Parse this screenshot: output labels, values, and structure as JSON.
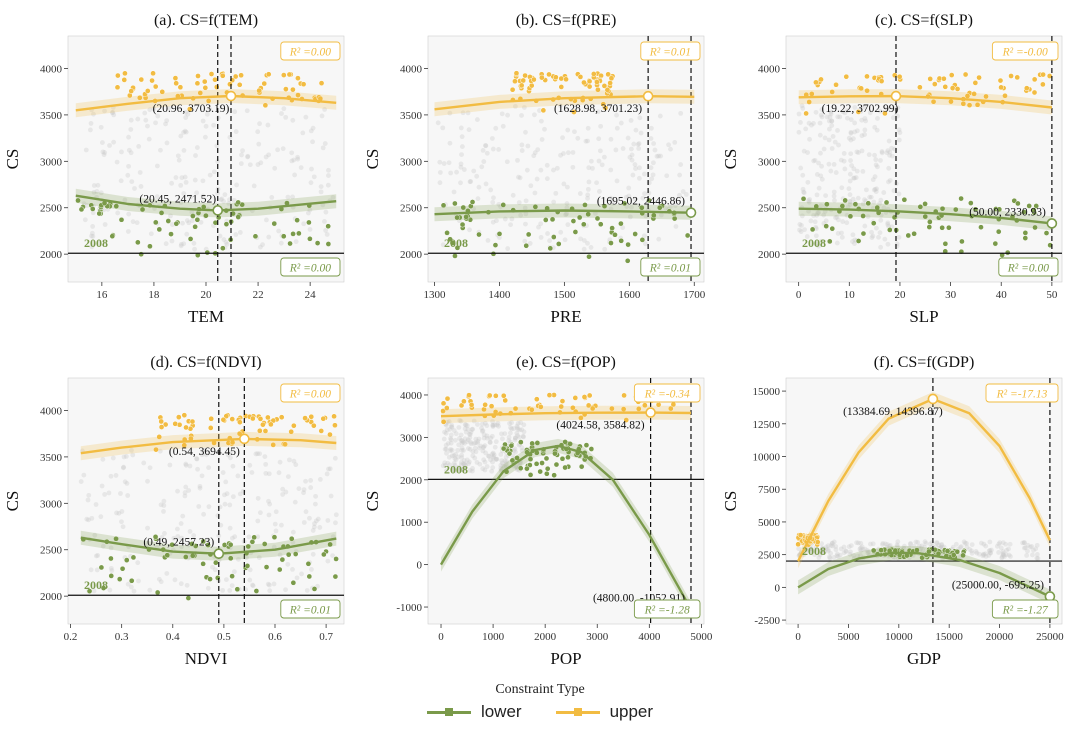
{
  "colors": {
    "lower": "#7a9a4a",
    "upper": "#f2bc42",
    "cloud": "#c9c9c9",
    "panel_bg": "#f7f7f7"
  },
  "legend": {
    "title": "Constraint Type",
    "items": [
      {
        "key": "lower",
        "label": "lower"
      },
      {
        "key": "upper",
        "label": "upper"
      }
    ]
  },
  "year_label": "2008",
  "chart_data": [
    {
      "type": "scatter",
      "title": "(a). CS=f(TEM)",
      "xlabel": "TEM",
      "ylabel": "CS",
      "xlim": [
        14.7,
        25.3
      ],
      "ylim": [
        1700,
        4350
      ],
      "xticks": [
        16,
        18,
        20,
        22,
        24
      ],
      "yticks": [
        2000,
        2500,
        3000,
        3500,
        4000
      ],
      "hline": 2010,
      "vlines": [
        20.45,
        20.96
      ],
      "cloud": {
        "x": [
          15.3,
          24.9
        ],
        "y": [
          2050,
          3600
        ]
      },
      "upper": {
        "curve": [
          [
            15,
            3550
          ],
          [
            17,
            3620
          ],
          [
            19,
            3680
          ],
          [
            20.96,
            3703.19
          ],
          [
            23,
            3680
          ],
          [
            25,
            3630
          ]
        ],
        "points_y": [
          3500,
          3950
        ],
        "points_x": [
          16.5,
          24.5
        ],
        "extreme": {
          "x": 20.96,
          "y": 3703.19,
          "label": "(20.96, 3703.19)"
        },
        "r2": "R² =0.00"
      },
      "lower": {
        "curve": [
          [
            15,
            2630
          ],
          [
            17,
            2540
          ],
          [
            19,
            2490
          ],
          [
            20.45,
            2471.52
          ],
          [
            22,
            2490
          ],
          [
            25,
            2570
          ]
        ],
        "points_y": [
          1900,
          2580
        ],
        "points_x": [
          15,
          25
        ],
        "extreme": {
          "x": 20.45,
          "y": 2471.52,
          "label": "(20.45, 2471.52)"
        },
        "r2": "R² =0.00"
      }
    },
    {
      "type": "scatter",
      "title": "(b). CS=f(PRE)",
      "xlabel": "PRE",
      "ylabel": "CS",
      "xlim": [
        1290,
        1715
      ],
      "ylim": [
        1700,
        4350
      ],
      "xticks": [
        1300,
        1400,
        1500,
        1600,
        1700
      ],
      "yticks": [
        2000,
        2500,
        3000,
        3500,
        4000
      ],
      "hline": 2010,
      "vlines": [
        1628.98,
        1695.02
      ],
      "cloud": {
        "x": [
          1305,
          1690
        ],
        "y": [
          2050,
          3600
        ]
      },
      "upper": {
        "curve": [
          [
            1300,
            3560
          ],
          [
            1400,
            3640
          ],
          [
            1500,
            3680
          ],
          [
            1628.98,
            3701.23
          ],
          [
            1700,
            3695
          ]
        ],
        "points_y": [
          3500,
          3950
        ],
        "points_x": [
          1420,
          1580
        ],
        "extreme": {
          "x": 1628.98,
          "y": 3701.23,
          "label": "(1628.98, 3701.23)"
        },
        "r2": "R² =0.01"
      },
      "lower": {
        "curve": [
          [
            1300,
            2430
          ],
          [
            1400,
            2460
          ],
          [
            1500,
            2470
          ],
          [
            1600,
            2460
          ],
          [
            1695.02,
            2446.86
          ]
        ],
        "points_y": [
          1900,
          2580
        ],
        "points_x": [
          1310,
          1690
        ],
        "extreme": {
          "x": 1695.02,
          "y": 2446.86,
          "label": "(1695.02, 2446.86)"
        },
        "r2": "R² =0.01"
      }
    },
    {
      "type": "scatter",
      "title": "(c). CS=f(SLP)",
      "xlabel": "SLP",
      "ylabel": "CS",
      "xlim": [
        -2.5,
        52
      ],
      "ylim": [
        1700,
        4350
      ],
      "xticks": [
        0,
        10,
        20,
        30,
        40,
        50
      ],
      "yticks": [
        2000,
        2500,
        3000,
        3500,
        4000
      ],
      "hline": 2010,
      "vlines": [
        19.22,
        50
      ],
      "cloud": {
        "x": [
          0,
          20
        ],
        "y": [
          2050,
          3600
        ]
      },
      "upper": {
        "curve": [
          [
            0,
            3690
          ],
          [
            10,
            3700
          ],
          [
            19.22,
            3702.99
          ],
          [
            30,
            3680
          ],
          [
            40,
            3640
          ],
          [
            50,
            3580
          ]
        ],
        "points_y": [
          3500,
          3950
        ],
        "points_x": [
          0,
          50
        ],
        "extreme": {
          "x": 19.22,
          "y": 3702.99,
          "label": "(19.22, 3702.99)"
        },
        "r2": "R² =-0.00"
      },
      "lower": {
        "curve": [
          [
            0,
            2490
          ],
          [
            10,
            2480
          ],
          [
            20,
            2460
          ],
          [
            30,
            2430
          ],
          [
            40,
            2390
          ],
          [
            50,
            2330.93
          ]
        ],
        "points_y": [
          1900,
          2600
        ],
        "points_x": [
          0,
          50
        ],
        "extreme": {
          "x": 50,
          "y": 2330.93,
          "label": "(50.00, 2330.93)"
        },
        "r2": "R² =0.00"
      }
    },
    {
      "type": "scatter",
      "title": "(d). CS=f(NDVI)",
      "xlabel": "NDVI",
      "ylabel": "CS",
      "xlim": [
        0.195,
        0.735
      ],
      "ylim": [
        1700,
        4350
      ],
      "xticks": [
        0.2,
        0.3,
        0.4,
        0.5,
        0.6,
        0.7
      ],
      "yticks": [
        2000,
        2500,
        3000,
        3500,
        4000
      ],
      "hline": 2010,
      "vlines": [
        0.49,
        0.54
      ],
      "cloud": {
        "x": [
          0.22,
          0.72
        ],
        "y": [
          2050,
          3600
        ]
      },
      "upper": {
        "curve": [
          [
            0.22,
            3540
          ],
          [
            0.3,
            3600
          ],
          [
            0.4,
            3660
          ],
          [
            0.54,
            3694.45
          ],
          [
            0.65,
            3680
          ],
          [
            0.72,
            3650
          ]
        ],
        "points_y": [
          3550,
          3950
        ],
        "points_x": [
          0.36,
          0.72
        ],
        "extreme": {
          "x": 0.54,
          "y": 3694.45,
          "label": "(0.54, 3694.45)"
        },
        "r2": "R² =0.00"
      },
      "lower": {
        "curve": [
          [
            0.22,
            2630
          ],
          [
            0.3,
            2560
          ],
          [
            0.4,
            2480
          ],
          [
            0.49,
            2457.23
          ],
          [
            0.6,
            2500
          ],
          [
            0.72,
            2620
          ]
        ],
        "points_y": [
          1900,
          2650
        ],
        "points_x": [
          0.22,
          0.72
        ],
        "extreme": {
          "x": 0.49,
          "y": 2457.23,
          "label": "(0.49, 2457.23)"
        },
        "r2": "R² =0.01"
      }
    },
    {
      "type": "scatter",
      "title": "(e). CS=f(POP)",
      "xlabel": "POP",
      "ylabel": "CS",
      "xlim": [
        -250,
        5050
      ],
      "ylim": [
        -1400,
        4400
      ],
      "xticks": [
        0,
        1000,
        2000,
        3000,
        4000,
        5000
      ],
      "yticks": [
        -1000,
        0,
        1000,
        2000,
        3000,
        4000
      ],
      "hline": 2010,
      "vlines": [
        4024.58,
        4800
      ],
      "cloud": {
        "x": [
          0,
          1600
        ],
        "y": [
          2200,
          3400
        ]
      },
      "upper": {
        "curve": [
          [
            0,
            3500
          ],
          [
            1000,
            3540
          ],
          [
            2000,
            3570
          ],
          [
            3000,
            3582
          ],
          [
            4024.58,
            3584.82
          ],
          [
            4800,
            3575
          ]
        ],
        "points_y": [
          3300,
          4000
        ],
        "points_x": [
          0,
          4800
        ],
        "extreme": {
          "x": 4024.58,
          "y": 3584.82,
          "label": "(4024.58, 3584.82)"
        },
        "r2": "R² =-0.34"
      },
      "lower": {
        "curve": [
          [
            0,
            0
          ],
          [
            600,
            1250
          ],
          [
            1200,
            2200
          ],
          [
            1800,
            2700
          ],
          [
            2250,
            2800
          ],
          [
            2700,
            2650
          ],
          [
            3300,
            2000
          ],
          [
            4000,
            700
          ],
          [
            4800,
            -1052.91
          ]
        ],
        "points_y": [
          2000,
          2900
        ],
        "points_x": [
          1200,
          2900
        ],
        "extreme": {
          "x": 4800,
          "y": -1052.91,
          "label": "(4800.00, -1052.91)"
        },
        "r2": "R² =-1.28"
      }
    },
    {
      "type": "scatter",
      "title": "(f). CS=f(GDP)",
      "xlabel": "GDP",
      "ylabel": "CS",
      "xlim": [
        -1200,
        26200
      ],
      "ylim": [
        -2800,
        16000
      ],
      "xticks": [
        0,
        5000,
        10000,
        15000,
        20000,
        25000
      ],
      "yticks": [
        -2500,
        0,
        2500,
        5000,
        7500,
        10000,
        12500,
        15000
      ],
      "hline": 2010,
      "vlines": [
        13384.69,
        25000
      ],
      "cloud": {
        "x": [
          0,
          24000
        ],
        "y": [
          2200,
          3500
        ]
      },
      "upper": {
        "curve": [
          [
            0,
            2000
          ],
          [
            3000,
            6600
          ],
          [
            6000,
            10300
          ],
          [
            9000,
            12900
          ],
          [
            13384.69,
            14396.87
          ],
          [
            17000,
            13300
          ],
          [
            20000,
            10800
          ],
          [
            23000,
            6800
          ],
          [
            25000,
            3600
          ]
        ],
        "points_y": [
          3200,
          4000
        ],
        "points_x": [
          0,
          2000
        ],
        "extreme": {
          "x": 13384.69,
          "y": 14396.87,
          "label": "(13384.69, 14396.87)"
        },
        "r2": "R² =-17.13"
      },
      "lower": {
        "curve": [
          [
            0,
            0
          ],
          [
            3000,
            1400
          ],
          [
            6000,
            2200
          ],
          [
            9500,
            2650
          ],
          [
            12000,
            2600
          ],
          [
            16000,
            2100
          ],
          [
            20000,
            1100
          ],
          [
            25000,
            -695.25
          ]
        ],
        "points_y": [
          2200,
          2900
        ],
        "points_x": [
          7500,
          16500
        ],
        "extreme": {
          "x": 25000,
          "y": -695.25,
          "label": "(25000.00, -695.25)"
        },
        "r2": "R² =-1.27"
      }
    }
  ]
}
